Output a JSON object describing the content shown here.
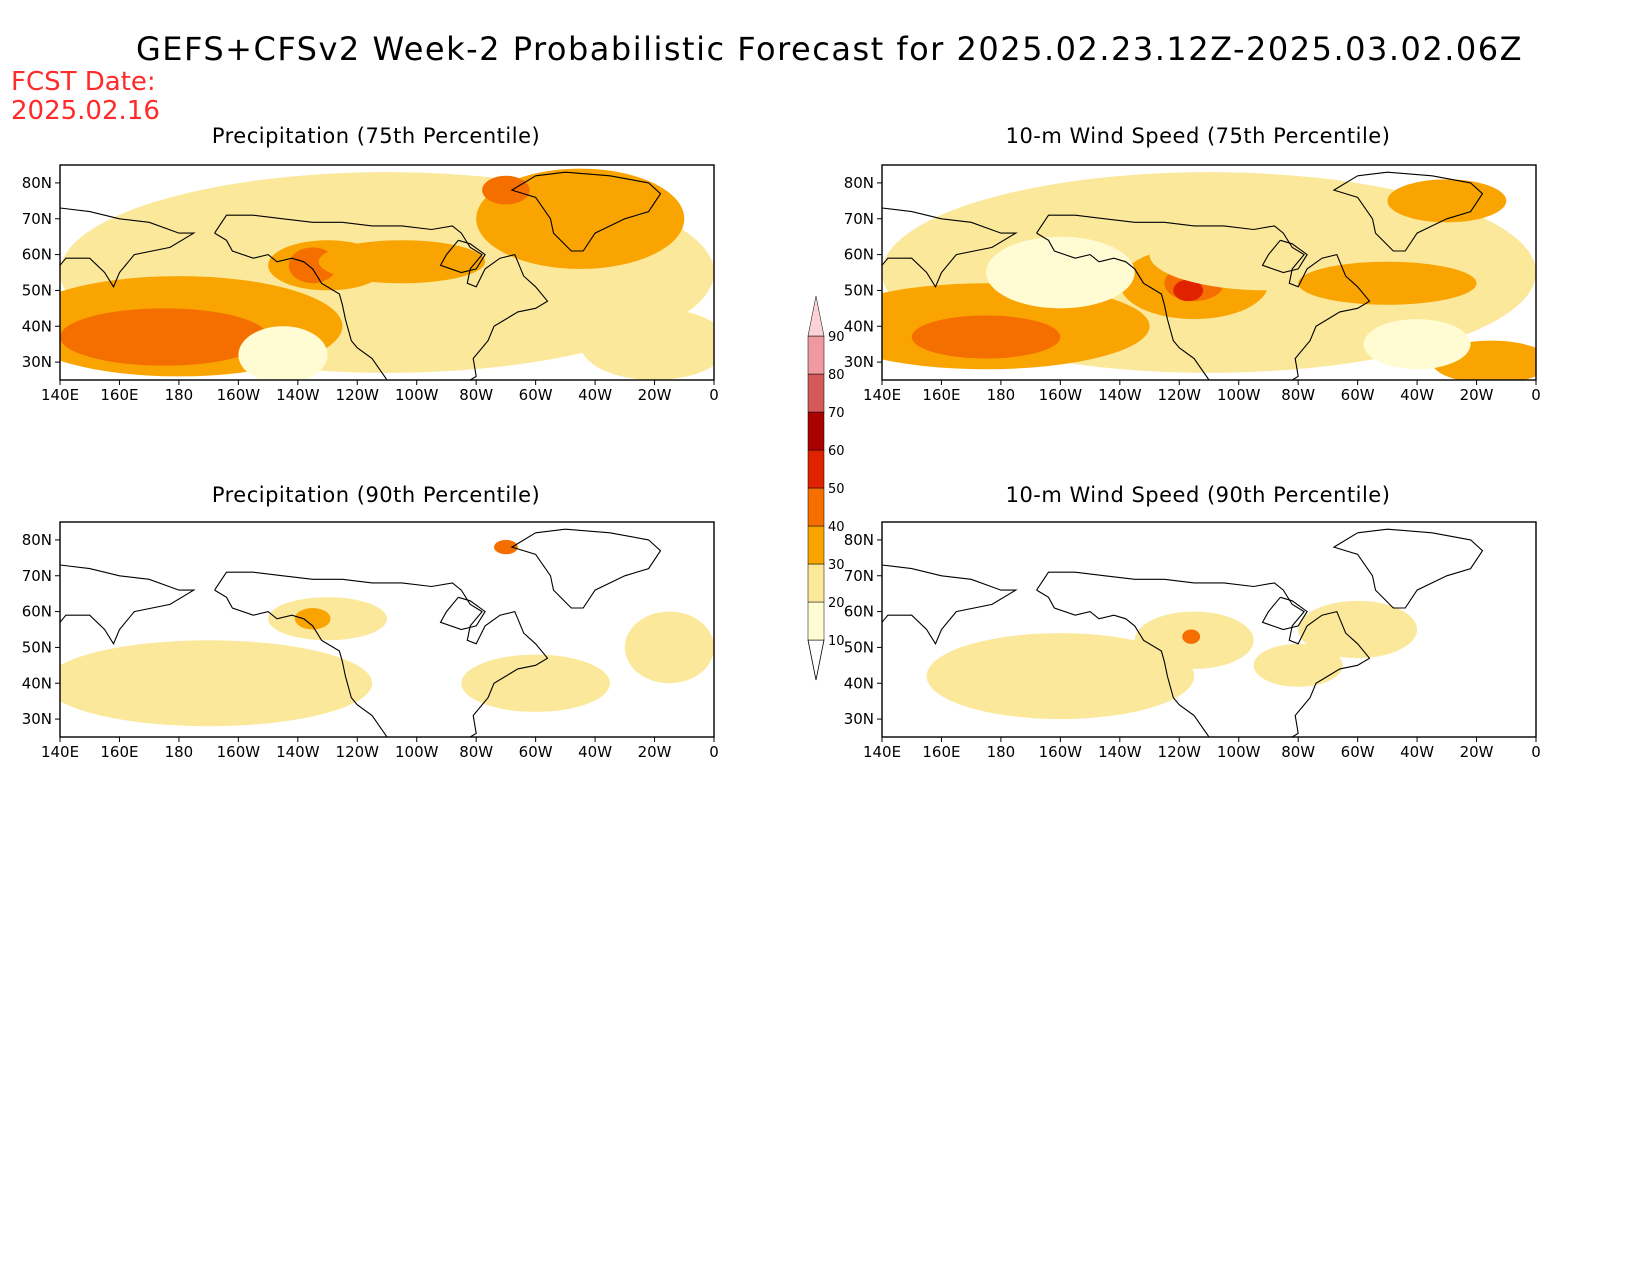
{
  "title": "GEFS+CFSv2 Week-2 Probabilistic Forecast for 2025.02.23.12Z-2025.03.02.06Z",
  "fcst_label": "FCST Date:",
  "fcst_date": "2025.02.16",
  "x_ticks": [
    "140E",
    "160E",
    "180",
    "160W",
    "140W",
    "120W",
    "100W",
    "80W",
    "60W",
    "40W",
    "20W",
    "0"
  ],
  "y_ticks": [
    "80N",
    "70N",
    "60N",
    "50N",
    "40N",
    "30N"
  ],
  "legend": {
    "labels": [
      "10",
      "20",
      "30",
      "40",
      "50",
      "60",
      "70",
      "80",
      "90"
    ],
    "colors": [
      "#fffcd4",
      "#fce89a",
      "#f9a400",
      "#f46f00",
      "#e02200",
      "#aa0000",
      "#d45a5a",
      "#ef9aa0",
      "#fbd2d6"
    ]
  },
  "panels": [
    {
      "id": "precip-75",
      "title": "Precipitation (75th Percentile)"
    },
    {
      "id": "wind-75",
      "title": "10-m Wind Speed (75th Percentile)"
    },
    {
      "id": "precip-90",
      "title": "Precipitation (90th Percentile)"
    },
    {
      "id": "wind-90",
      "title": "10-m Wind Speed (90th Percentile)"
    }
  ]
}
